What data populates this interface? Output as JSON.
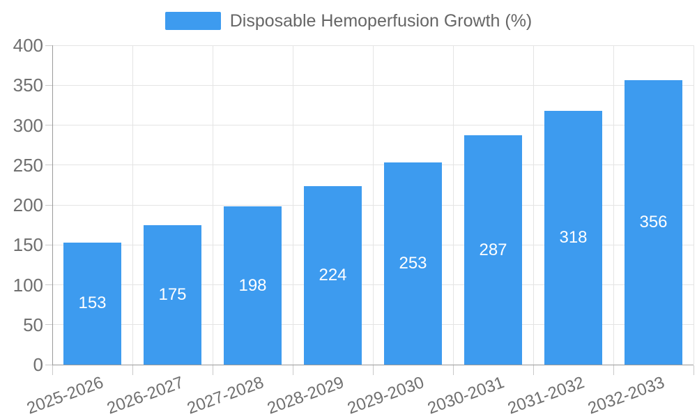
{
  "chart_data": {
    "type": "bar",
    "title": "Disposable Hemoperfusion Growth (%)",
    "categories": [
      "2025-2026",
      "2026-2027",
      "2027-2028",
      "2028-2029",
      "2029-2030",
      "2030-2031",
      "2031-2032",
      "2032-2033"
    ],
    "series": [
      {
        "name": "Disposable Hemoperfusion Growth (%)",
        "values": [
          153,
          175,
          198,
          224,
          253,
          287,
          318,
          356
        ]
      }
    ],
    "xlabel": "",
    "ylabel": "",
    "ylim": [
      0,
      400
    ],
    "ytick_step": 50,
    "grid": true,
    "legend_position": "top-center",
    "bar_labels_shown": true,
    "x_label_rotation_deg": -20
  },
  "legend": {
    "label": "Disposable Hemoperfusion Growth (%)"
  },
  "colors": {
    "bar": "#3d9bef",
    "grid": "#e4e4e4",
    "axis": "#9a9a9a",
    "tick": "#c9c9c9",
    "axis_text": "#6f6f6f",
    "legend_text": "#666666",
    "bar_label_text": "#ffffff",
    "background": "#ffffff"
  }
}
